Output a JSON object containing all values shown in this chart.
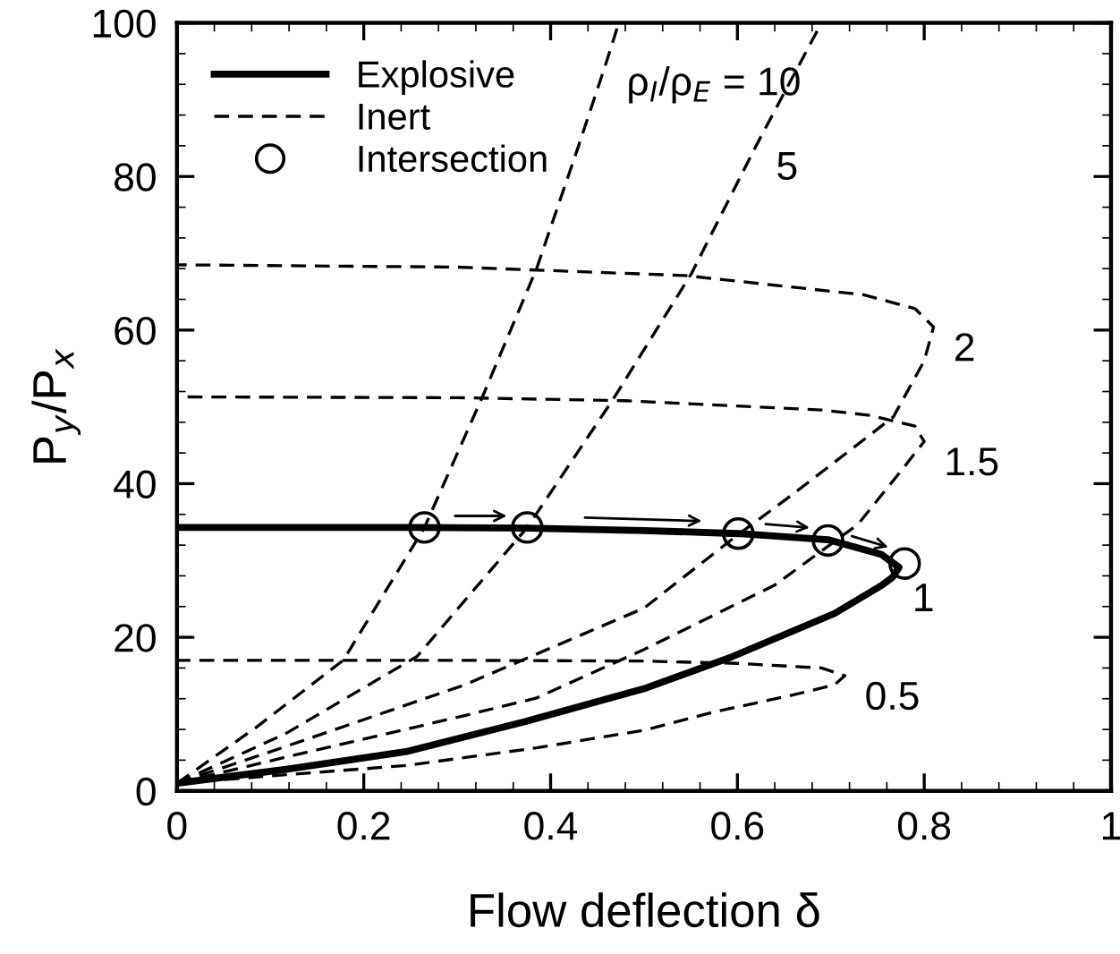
{
  "chart_data": {
    "type": "line",
    "xlabel": "Flow deflection δ",
    "ylabel": "P$_{y}$/P$_{x}$",
    "xlim": [
      0,
      1
    ],
    "ylim": [
      0,
      100
    ],
    "xticks": [
      0,
      0.2,
      0.4,
      0.6,
      0.8,
      1
    ],
    "yticks": [
      0,
      20,
      40,
      60,
      80,
      100
    ],
    "grid": false,
    "legend": "top left",
    "marker": "none",
    "series": [
      {
        "name": "Explosive",
        "line_style": "solid",
        "color": "#000000",
        "x": [
          0,
          0.117,
          0.245,
          0.372,
          0.5,
          0.595,
          0.704,
          0.755,
          0.766,
          0.773,
          0.754,
          0.697,
          0.601,
          0.5,
          0.375,
          0.25,
          0
        ],
        "values": [
          1,
          2.8,
          5.1,
          9.0,
          13.3,
          17.5,
          23.1,
          26.8,
          27.8,
          29.1,
          30.8,
          32.7,
          33.5,
          33.9,
          34.2,
          34.3,
          34.3
        ]
      },
      {
        "name": "Inert",
        "line_style": "dashed",
        "color": "#000000",
        "x": [
          0,
          0.117,
          0.245,
          0.385,
          0.5,
          0.576,
          0.66,
          0.704,
          0.715,
          0.69,
          0.6,
          0.5,
          0.3,
          0
        ],
        "values": [
          1,
          2.1,
          3.3,
          5.6,
          7.9,
          10.3,
          12.5,
          13.8,
          15.0,
          16.0,
          16.6,
          16.9,
          17.0,
          17.0
        ]
      },
      {
        "line_style": "dashed",
        "color": "#000000",
        "x": [
          0,
          0.117,
          0.308,
          0.385,
          0.5,
          0.64,
          0.729,
          0.78,
          0.8,
          0.79,
          0.742,
          0.69,
          0.48,
          0.3,
          0
        ],
        "values": [
          1,
          4.4,
          9.8,
          12.1,
          18.4,
          26.8,
          34.7,
          42.4,
          45.5,
          47.5,
          48.9,
          49.6,
          50.8,
          51.2,
          51.3
        ]
      },
      {
        "line_style": "dashed",
        "color": "#000000",
        "x": [
          0,
          0.117,
          0.308,
          0.5,
          0.6,
          0.658,
          0.767,
          0.8,
          0.81,
          0.79,
          0.735,
          0.544,
          0.3,
          0
        ],
        "values": [
          1,
          5.8,
          13.8,
          23.8,
          33.3,
          38.5,
          48.7,
          56,
          60.4,
          62.8,
          64.6,
          67.1,
          68.2,
          68.5
        ]
      },
      {
        "line_style": "dashed",
        "color": "#000000",
        "x": [
          0,
          0.117,
          0.257,
          0.375,
          0.467,
          0.551,
          0.62,
          0.69
        ],
        "values": [
          1,
          7.5,
          17.5,
          34.3,
          51,
          67.4,
          84,
          100
        ]
      },
      {
        "line_style": "dashed",
        "color": "#000000",
        "x": [
          0,
          0.084,
          0.178,
          0.265,
          0.327,
          0.385,
          0.43,
          0.46,
          0.473
        ],
        "values": [
          1,
          8.2,
          17.0,
          34.3,
          51.3,
          68,
          84,
          95,
          100
        ]
      },
      {
        "name": "Intersection",
        "type": "scatter",
        "marker": "circle",
        "color": "#000000",
        "x": [
          0.265,
          0.375,
          0.601,
          0.697,
          0.779
        ],
        "values": [
          34.3,
          34.3,
          33.5,
          32.6,
          29.6
        ]
      }
    ],
    "annotations": [
      {
        "text": "ρ$_{I}$/ρ$_{E}$ = 10",
        "x": 0.46,
        "y": 95
      },
      {
        "text": "5",
        "x": 0.62,
        "y": 84
      },
      {
        "text": "2",
        "x": 0.81,
        "y": 60.4
      },
      {
        "text": "1.5",
        "x": 0.8,
        "y": 45.5
      },
      {
        "text": "1",
        "x": 0.766,
        "y": 27.8
      },
      {
        "text": "0.5",
        "x": 0.715,
        "y": 15.0
      }
    ]
  }
}
